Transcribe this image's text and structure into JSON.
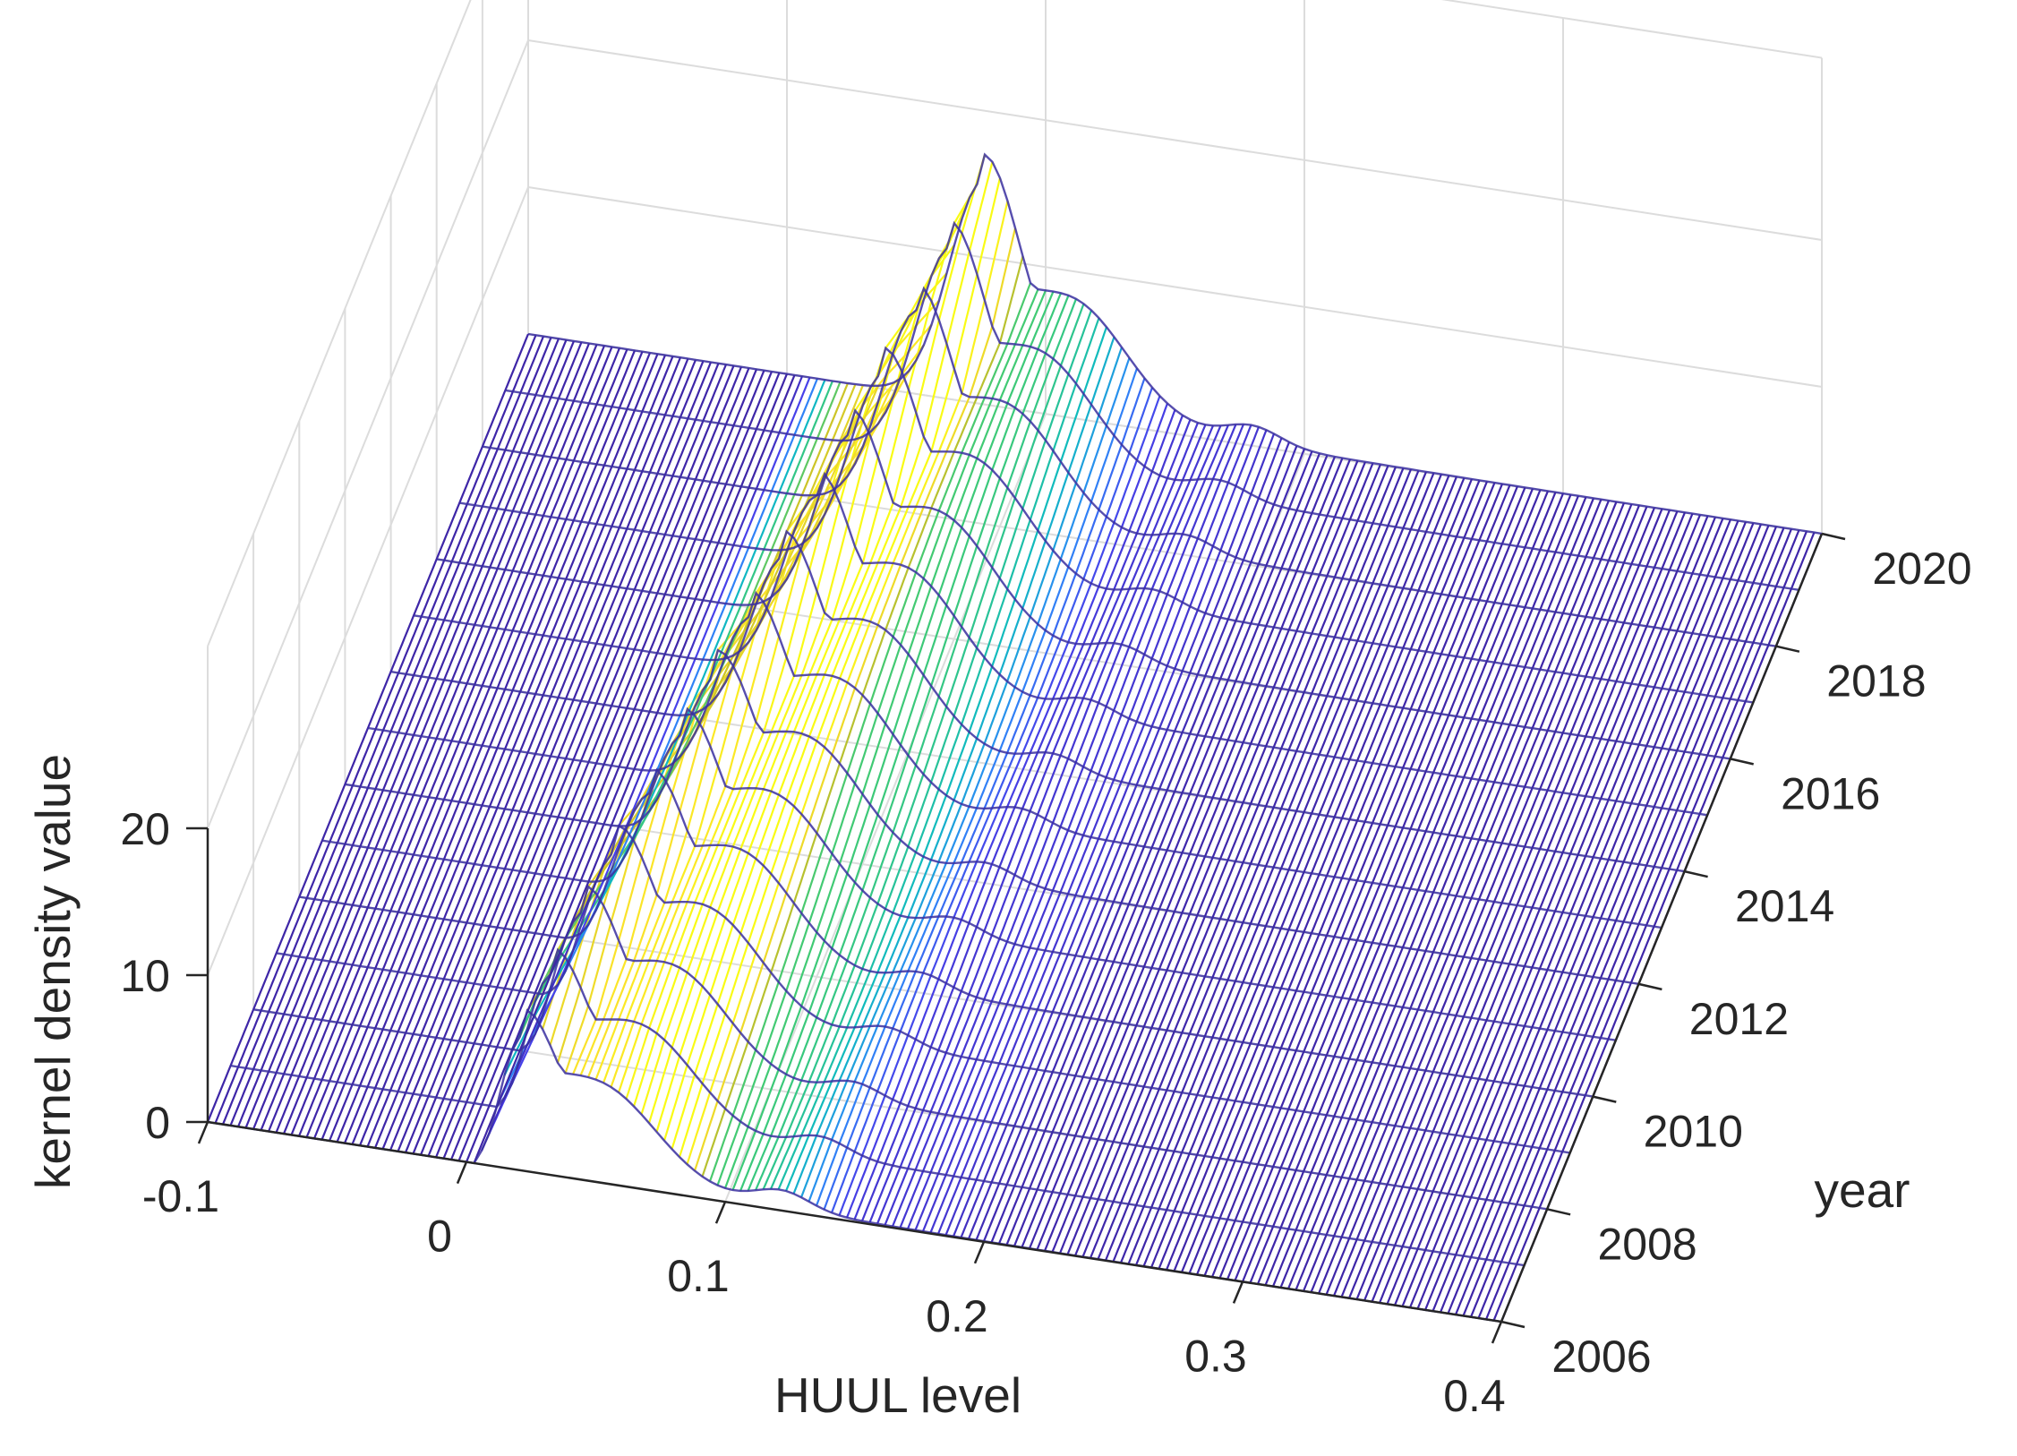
{
  "chart_data": {
    "type": "surface",
    "xlabel": "HUUL level",
    "ylabel": "year",
    "zlabel": "kernel density value",
    "xlim": [
      -0.1,
      0.4
    ],
    "ylim": [
      2006,
      2020
    ],
    "zlim": [
      0,
      20
    ],
    "x_ticks": [
      "-0.1",
      "0",
      "0.1",
      "0.2",
      "0.3",
      "0.4"
    ],
    "y_ticks": [
      "2006",
      "2008",
      "2010",
      "2012",
      "2014",
      "2016",
      "2018",
      "2020"
    ],
    "z_ticks": [
      "0",
      "10",
      "20"
    ],
    "colormap": [
      "#3e26a8",
      "#4740e9",
      "#2e87f7",
      "#0ebac0",
      "#3fca75",
      "#c6c027",
      "#fbe32a",
      "#f9fb15"
    ],
    "grid": true,
    "series": [
      {
        "year": 2006,
        "mode": 0.021,
        "peak": 12.6,
        "shoulder_x": 0.052,
        "shoulder": 8.0
      },
      {
        "year": 2007,
        "mode": 0.024,
        "peak": 13.0,
        "shoulder_x": 0.058,
        "shoulder": 8.6
      },
      {
        "year": 2008,
        "mode": 0.028,
        "peak": 13.5,
        "shoulder_x": 0.062,
        "shoulder": 9.0
      },
      {
        "year": 2009,
        "mode": 0.032,
        "peak": 13.9,
        "shoulder_x": 0.066,
        "shoulder": 9.4
      },
      {
        "year": 2010,
        "mode": 0.036,
        "peak": 14.2,
        "shoulder_x": 0.07,
        "shoulder": 9.6
      },
      {
        "year": 2011,
        "mode": 0.04,
        "peak": 14.6,
        "shoulder_x": 0.074,
        "shoulder": 9.8
      },
      {
        "year": 2012,
        "mode": 0.044,
        "peak": 14.9,
        "shoulder_x": 0.078,
        "shoulder": 10.0
      },
      {
        "year": 2013,
        "mode": 0.048,
        "peak": 15.3,
        "shoulder_x": 0.082,
        "shoulder": 10.2
      },
      {
        "year": 2014,
        "mode": 0.052,
        "peak": 15.8,
        "shoulder_x": 0.086,
        "shoulder": 10.3
      },
      {
        "year": 2015,
        "mode": 0.056,
        "peak": 16.4,
        "shoulder_x": 0.09,
        "shoulder": 10.4
      },
      {
        "year": 2016,
        "mode": 0.06,
        "peak": 17.0,
        "shoulder_x": 0.094,
        "shoulder": 10.5
      },
      {
        "year": 2017,
        "mode": 0.064,
        "peak": 17.6,
        "shoulder_x": 0.098,
        "shoulder": 10.5
      },
      {
        "year": 2018,
        "mode": 0.068,
        "peak": 18.4,
        "shoulder_x": 0.102,
        "shoulder": 10.4
      },
      {
        "year": 2019,
        "mode": 0.072,
        "peak": 19.2,
        "shoulder_x": 0.106,
        "shoulder": 10.2
      },
      {
        "year": 2020,
        "mode": 0.076,
        "peak": 20.4,
        "shoulder_x": 0.11,
        "shoulder": 10.0
      }
    ]
  }
}
